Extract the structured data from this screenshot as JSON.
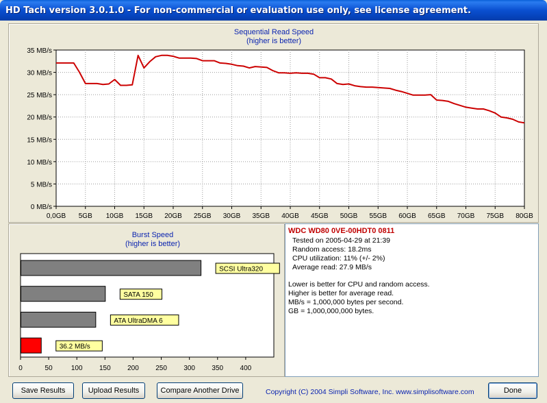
{
  "window": {
    "title": "HD Tach version 3.0.1.0  - For non-commercial or evaluation use only, see license agreement."
  },
  "sequential": {
    "title_line1": "Sequential Read Speed",
    "title_line2": "(higher is better)"
  },
  "burst": {
    "title_line1": "Burst Speed",
    "title_line2": "(higher is better)"
  },
  "chart_data": [
    {
      "type": "line",
      "title": "Sequential Read Speed",
      "subtitle": "(higher is better)",
      "x_tick_labels": [
        "0,0GB",
        "5GB",
        "10GB",
        "15GB",
        "20GB",
        "25GB",
        "30GB",
        "35GB",
        "40GB",
        "45GB",
        "50GB",
        "55GB",
        "60GB",
        "65GB",
        "70GB",
        "75GB",
        "80GB"
      ],
      "y_tick_labels": [
        "0 MB/s",
        "5 MB/s",
        "10 MB/s",
        "15 MB/s",
        "20 MB/s",
        "25 MB/s",
        "30 MB/s",
        "35 MB/s"
      ],
      "xlim": [
        0,
        80
      ],
      "ylim": [
        0,
        35
      ],
      "grid": true,
      "line_color": "#cc0000",
      "series": [
        {
          "x": [
            0,
            1,
            2,
            3,
            4,
            5,
            6,
            7,
            8,
            9,
            10,
            11,
            12,
            13,
            14,
            15,
            16,
            17,
            18,
            19,
            20,
            21,
            22,
            23,
            24,
            25,
            26,
            27,
            28,
            29,
            30,
            31,
            32,
            33,
            34,
            35,
            36,
            37,
            38,
            39,
            40,
            41,
            42,
            43,
            44,
            45,
            46,
            47,
            48,
            49,
            50,
            51,
            52,
            53,
            54,
            55,
            56,
            57,
            58,
            59,
            60,
            61,
            62,
            63,
            64,
            65,
            66,
            67,
            68,
            69,
            70,
            71,
            72,
            73,
            74,
            75,
            76,
            77,
            78,
            79,
            80
          ],
          "y": [
            32.1,
            32.1,
            32.1,
            32.1,
            30.0,
            27.5,
            27.5,
            27.5,
            27.3,
            27.4,
            28.4,
            27.1,
            27.1,
            27.2,
            33.8,
            31.0,
            32.4,
            33.5,
            33.8,
            33.8,
            33.6,
            33.2,
            33.2,
            33.2,
            33.1,
            32.6,
            32.6,
            32.6,
            32.1,
            32.0,
            31.8,
            31.5,
            31.4,
            31.0,
            31.3,
            31.2,
            31.1,
            30.4,
            29.9,
            29.9,
            29.8,
            29.9,
            29.8,
            29.8,
            29.6,
            28.8,
            28.8,
            28.5,
            27.5,
            27.3,
            27.4,
            27.0,
            26.8,
            26.7,
            26.7,
            26.6,
            26.5,
            26.4,
            26.0,
            25.7,
            25.3,
            24.9,
            24.9,
            24.9,
            25.0,
            23.8,
            23.7,
            23.5,
            23.0,
            22.6,
            22.2,
            22.0,
            21.8,
            21.8,
            21.4,
            20.9,
            20.0,
            19.8,
            19.5,
            18.9,
            18.7
          ]
        }
      ]
    },
    {
      "type": "bar",
      "orientation": "horizontal",
      "title": "Burst Speed",
      "subtitle": "(higher is better)",
      "xlim": [
        0,
        450
      ],
      "x_tick_labels": [
        "0",
        "50",
        "100",
        "150",
        "200",
        "250",
        "300",
        "350",
        "400"
      ],
      "grid": false,
      "bars": [
        {
          "label": "SCSI Ultra320",
          "value": 320,
          "color": "#808080"
        },
        {
          "label": "SATA 150",
          "value": 150,
          "color": "#808080"
        },
        {
          "label": "ATA UltraDMA 6",
          "value": 133,
          "color": "#808080"
        },
        {
          "label": "36.2 MB/s",
          "value": 36.2,
          "color": "#ff0000"
        }
      ]
    }
  ],
  "info": {
    "model": "WDC WD80 0VE-00HDT0 0811",
    "tested_on": "Tested on 2005-04-29 at 21:39",
    "random_access": "Random access: 18.2ms",
    "cpu": "CPU utilization: 11% (+/- 2%)",
    "average_read": "Average read: 27.9 MB/s",
    "note1": "Lower is better for CPU and random access.",
    "note2": "Higher is better for average read.",
    "note3": "MB/s = 1,000,000 bytes per second.",
    "note4": "GB = 1,000,000,000 bytes."
  },
  "buttons": {
    "save": "Save Results",
    "upload": "Upload Results",
    "compare": "Compare Another Drive",
    "done": "Done"
  },
  "footer": {
    "copyright": "Copyright (C) 2004 Simpli Software, Inc. www.simplisoftware.com"
  }
}
